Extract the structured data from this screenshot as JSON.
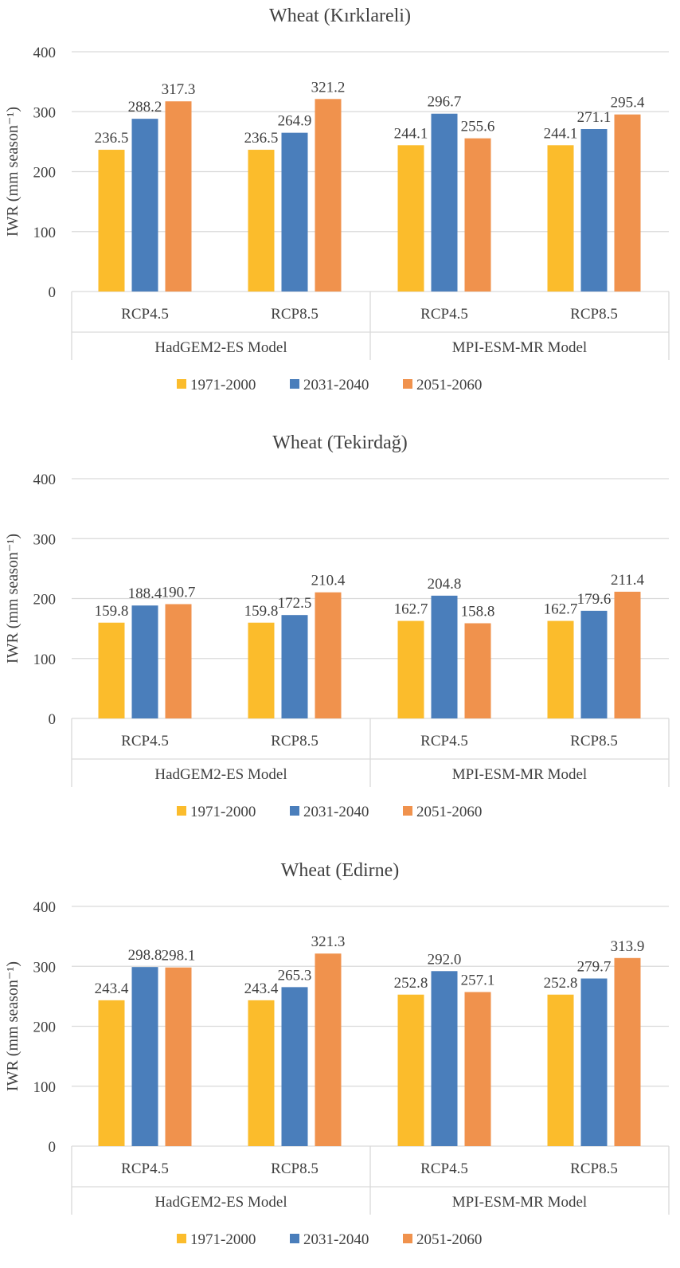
{
  "chart_data": [
    {
      "type": "bar",
      "title": "Wheat (Kırklareli)",
      "ylabel": "IWR (mm season⁻¹)",
      "ylim": [
        0,
        400
      ],
      "yticks": [
        "0",
        "100",
        "200",
        "300",
        "400"
      ],
      "categories": [
        "RCP4.5",
        "RCP8.5",
        "RCP4.5",
        "RCP8.5"
      ],
      "groups": [
        "HadGEM2-ES Model",
        "MPI-ESM-MR Model"
      ],
      "series": [
        {
          "name": "1971-2000",
          "color": "#fbbc2c",
          "values": [
            236.5,
            236.5,
            244.1,
            244.1
          ],
          "labels": [
            "236.5",
            "236.5",
            "244.1",
            "244.1"
          ]
        },
        {
          "name": "2031-2040",
          "color": "#4a7ebb",
          "values": [
            288.2,
            264.9,
            296.7,
            271.1
          ],
          "labels": [
            "288.2",
            "264.9",
            "296.7",
            "271.1"
          ]
        },
        {
          "name": "2051-2060",
          "color": "#f0924d",
          "values": [
            317.3,
            321.2,
            255.6,
            295.4
          ],
          "labels": [
            "317.3",
            "321.2",
            "255.6",
            "295.4"
          ]
        }
      ]
    },
    {
      "type": "bar",
      "title": "Wheat (Tekirdağ)",
      "ylabel": "IWR (mm season⁻¹)",
      "ylim": [
        0,
        400
      ],
      "yticks": [
        "0",
        "100",
        "200",
        "300",
        "400"
      ],
      "categories": [
        "RCP4.5",
        "RCP8.5",
        "RCP4.5",
        "RCP8.5"
      ],
      "groups": [
        "HadGEM2-ES Model",
        "MPI-ESM-MR Model"
      ],
      "series": [
        {
          "name": "1971-2000",
          "color": "#fbbc2c",
          "values": [
            159.8,
            159.8,
            162.7,
            162.7
          ],
          "labels": [
            "159.8",
            "159.8",
            "162.7",
            "162.7"
          ]
        },
        {
          "name": "2031-2040",
          "color": "#4a7ebb",
          "values": [
            188.4,
            172.5,
            204.8,
            179.6
          ],
          "labels": [
            "188.4",
            "172.5",
            "204.8",
            "179.6"
          ]
        },
        {
          "name": "2051-2060",
          "color": "#f0924d",
          "values": [
            190.7,
            210.4,
            158.8,
            211.4
          ],
          "labels": [
            "190.7",
            "210.4",
            "158.8",
            "211.4"
          ]
        }
      ]
    },
    {
      "type": "bar",
      "title": "Wheat (Edirne)",
      "ylabel": "IWR (mm season⁻¹)",
      "ylim": [
        0,
        400
      ],
      "yticks": [
        "0",
        "100",
        "200",
        "300",
        "400"
      ],
      "categories": [
        "RCP4.5",
        "RCP8.5",
        "RCP4.5",
        "RCP8.5"
      ],
      "groups": [
        "HadGEM2-ES Model",
        "MPI-ESM-MR Model"
      ],
      "series": [
        {
          "name": "1971-2000",
          "color": "#fbbc2c",
          "values": [
            243.4,
            243.4,
            252.8,
            252.8
          ],
          "labels": [
            "243.4",
            "243.4",
            "252.8",
            "252.8"
          ]
        },
        {
          "name": "2031-2040",
          "color": "#4a7ebb",
          "values": [
            298.8,
            265.3,
            292.0,
            279.7
          ],
          "labels": [
            "298.8",
            "265.3",
            "292.0",
            "279.7"
          ]
        },
        {
          "name": "2051-2060",
          "color": "#f0924d",
          "values": [
            298.1,
            321.3,
            257.1,
            313.9
          ],
          "labels": [
            "298.1",
            "321.3",
            "257.1",
            "313.9"
          ]
        }
      ]
    }
  ],
  "colors": {
    "gridline": "#d9d9d9",
    "text": "#404040"
  }
}
